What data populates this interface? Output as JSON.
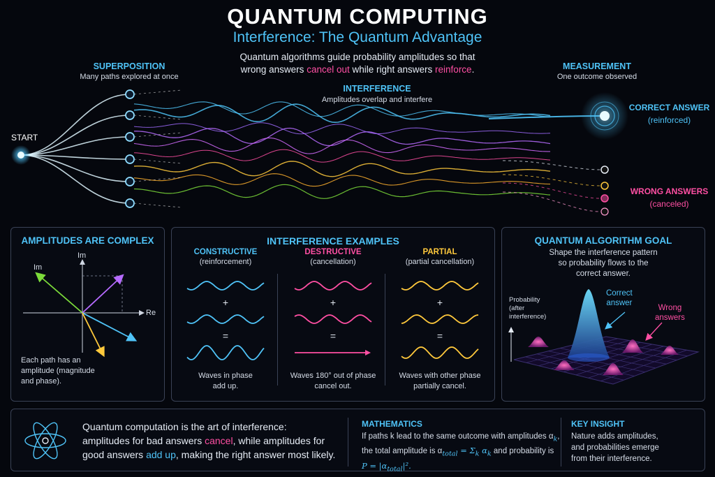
{
  "header": {
    "title": "QUANTUM COMPUTING",
    "subtitle": "Interference: The Quantum Advantage",
    "intro_line1": "Quantum algorithms guide probability amplitudes so that",
    "intro_line2_pre": "wrong answers ",
    "intro_line2_cancel": "cancel out",
    "intro_line2_mid": " while right answers ",
    "intro_line2_reinforce": "reinforce",
    "intro_line2_end": "."
  },
  "flow": {
    "start": "START",
    "superposition_title": "SUPERPOSITION",
    "superposition_sub": "Many paths explored at once",
    "interference_title": "INTERFERENCE",
    "interference_sub": "Amplitudes overlap and interfere",
    "measurement_title": "MEASUREMENT",
    "measurement_sub": "One outcome observed",
    "correct_title": "CORRECT ANSWER",
    "correct_sub": "(reinforced)",
    "wrong_title": "WRONG ANSWERS",
    "wrong_sub": "(canceled)"
  },
  "amplitudes": {
    "title": "AMPLITUDES ARE COMPLEX",
    "im_top": "Im",
    "im_left": "Im",
    "re": "Re",
    "caption_1": "Each path has an",
    "caption_2": "amplitude (magnitude",
    "caption_3": "and phase)."
  },
  "examples": {
    "title": "INTERFERENCE EXAMPLES",
    "plus": "+",
    "equals": "=",
    "items": [
      {
        "name": "CONSTRUCTIVE",
        "sub": "(reinforcement)",
        "cap1": "Waves in phase",
        "cap2": "add up.",
        "color": "#4fc3f7"
      },
      {
        "name": "DESTRUCTIVE",
        "sub": "(cancellation)",
        "cap1": "Waves 180° out of phase",
        "cap2": "cancel out.",
        "color": "#ff4fa3"
      },
      {
        "name": "PARTIAL",
        "sub": "(partial cancellation)",
        "cap1": "Waves with other phase",
        "cap2": "partially cancel.",
        "color": "#ffc93c"
      }
    ]
  },
  "goal": {
    "title": "QUANTUM ALGORITHM GOAL",
    "desc1": "Shape the interference pattern",
    "desc2": "so probability flows to the",
    "desc3": "correct answer.",
    "prob_1": "Probability",
    "prob_2": "(after",
    "prob_3": "interference)",
    "correct_1": "Correct",
    "correct_2": "answer",
    "wrong_1": "Wrong",
    "wrong_2": "answers"
  },
  "footer": {
    "quote_1": "Quantum computation is the art of interference:",
    "quote_2_pre": "amplitudes for bad answers ",
    "quote_2_cancel": "cancel",
    "quote_2_post": ", while amplitudes for",
    "quote_3_pre": "good answers ",
    "quote_3_add": "add up",
    "quote_3_post": ", making the right answer most likely.",
    "math_title": "MATHEMATICS",
    "math_1": "If paths k lead to the same outcome with amplitudes α",
    "math_1_sub": "k",
    "math_2a": "the total amplitude is α",
    "math_2_sub": "total",
    "math_2b": " = Σ",
    "math_2c": " α",
    "math_2d": " and probability is",
    "math_3": "P = |α",
    "math_3_end": "|².",
    "insight_title": "KEY INSIGHT",
    "insight_1": "Nature adds amplitudes,",
    "insight_2": "and probabilities emerge",
    "insight_3": "from their interference."
  },
  "colors": {
    "cyan": "#4fc3f7",
    "pink": "#ff4fa3",
    "yellow": "#ffc93c",
    "purple": "#b66bff",
    "green": "#7cdc3a"
  }
}
